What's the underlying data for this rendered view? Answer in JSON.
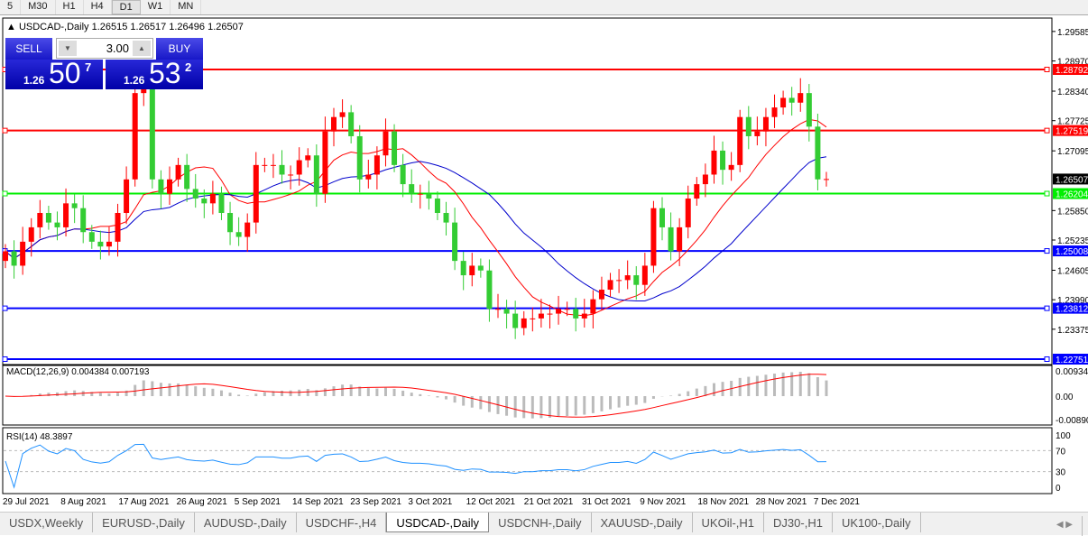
{
  "timeframes": [
    "5",
    "M30",
    "H1",
    "H4",
    "D1",
    "W1",
    "MN"
  ],
  "active_timeframe": "D1",
  "chart": {
    "title": "USDCAD-,Daily",
    "ohlc_text": "1.26515 1.26517 1.26496 1.26507",
    "price_ticks": [
      "1.29585",
      "1.28970",
      "1.28340",
      "1.27725",
      "1.27095",
      "1.25850",
      "1.25235",
      "1.24605",
      "1.23990",
      "1.23375"
    ],
    "current_price": "1.26507",
    "levels": [
      {
        "price": 1.28792,
        "label": "1.28792",
        "color": "#ff0000"
      },
      {
        "price": 1.27519,
        "label": "1.27519",
        "color": "#ff0000"
      },
      {
        "price": 1.26204,
        "label": "1.26204",
        "color": "#00ee00"
      },
      {
        "price": 1.25008,
        "label": "1.25008",
        "color": "#0000ff"
      },
      {
        "price": 1.23812,
        "label": "1.23812",
        "color": "#0000ff"
      },
      {
        "price": 1.22751,
        "label": "1.22751",
        "color": "#0000ff"
      }
    ],
    "dates": [
      "29 Jul 2021",
      "8 Aug 2021",
      "17 Aug 2021",
      "26 Aug 2021",
      "5 Sep 2021",
      "14 Sep 2021",
      "23 Sep 2021",
      "3 Oct 2021",
      "12 Oct 2021",
      "21 Oct 2021",
      "31 Oct 2021",
      "9 Nov 2021",
      "18 Nov 2021",
      "28 Nov 2021",
      "7 Dec 2021"
    ],
    "closes": [
      1.25,
      1.247,
      1.252,
      1.255,
      1.258,
      1.256,
      1.255,
      1.26,
      1.259,
      1.254,
      1.252,
      1.251,
      1.252,
      1.258,
      1.265,
      1.283,
      1.284,
      1.265,
      1.262,
      1.265,
      1.268,
      1.263,
      1.261,
      1.26,
      1.262,
      1.258,
      1.254,
      1.253,
      1.256,
      1.268,
      1.268,
      1.268,
      1.266,
      1.266,
      1.269,
      1.27,
      1.262,
      1.275,
      1.278,
      1.279,
      1.274,
      1.265,
      1.266,
      1.27,
      1.275,
      1.268,
      1.264,
      1.262,
      1.262,
      1.261,
      1.258,
      1.256,
      1.248,
      1.245,
      1.247,
      1.246,
      1.238,
      1.238,
      1.237,
      1.234,
      1.236,
      1.236,
      1.237,
      1.237,
      1.238,
      1.238,
      1.236,
      1.237,
      1.24,
      1.242,
      1.244,
      1.244,
      1.245,
      1.243,
      1.247,
      1.259,
      1.255,
      1.25,
      1.255,
      1.261,
      1.264,
      1.266,
      1.271,
      1.267,
      1.268,
      1.278,
      1.274,
      1.275,
      1.278,
      1.28,
      1.282,
      1.281,
      1.283,
      1.276,
      1.265,
      1.26507
    ],
    "colors": {
      "bull": "#ff0000",
      "bear": "#33cc33",
      "ma_fast": "#ff0000",
      "ma_slow": "#0000cc"
    }
  },
  "trade": {
    "sell_label": "SELL",
    "buy_label": "BUY",
    "lot": "3.00",
    "sell_big": "1.26",
    "sell_pips": "50",
    "sell_frac": "7",
    "buy_big": "1.26",
    "buy_pips": "53",
    "buy_frac": "2"
  },
  "macd": {
    "label": "MACD(12,26,9) 0.004384 0.007193",
    "ticks": [
      "0.009345",
      "0.00",
      "-0.00890"
    ]
  },
  "rsi": {
    "label": "RSI(14) 48.3897",
    "ticks": [
      "100",
      "70",
      "30",
      "0"
    ]
  },
  "tabs": [
    "USDX,Weekly",
    "EURUSD-,Daily",
    "AUDUSD-,Daily",
    "USDCHF-,H4",
    "USDCAD-,Daily",
    "USDCNH-,Daily",
    "XAUUSD-,Daily",
    "UKOil-,H1",
    "DJ30-,H1",
    "UK100-,Daily"
  ],
  "active_tab": "USDCAD-,Daily"
}
